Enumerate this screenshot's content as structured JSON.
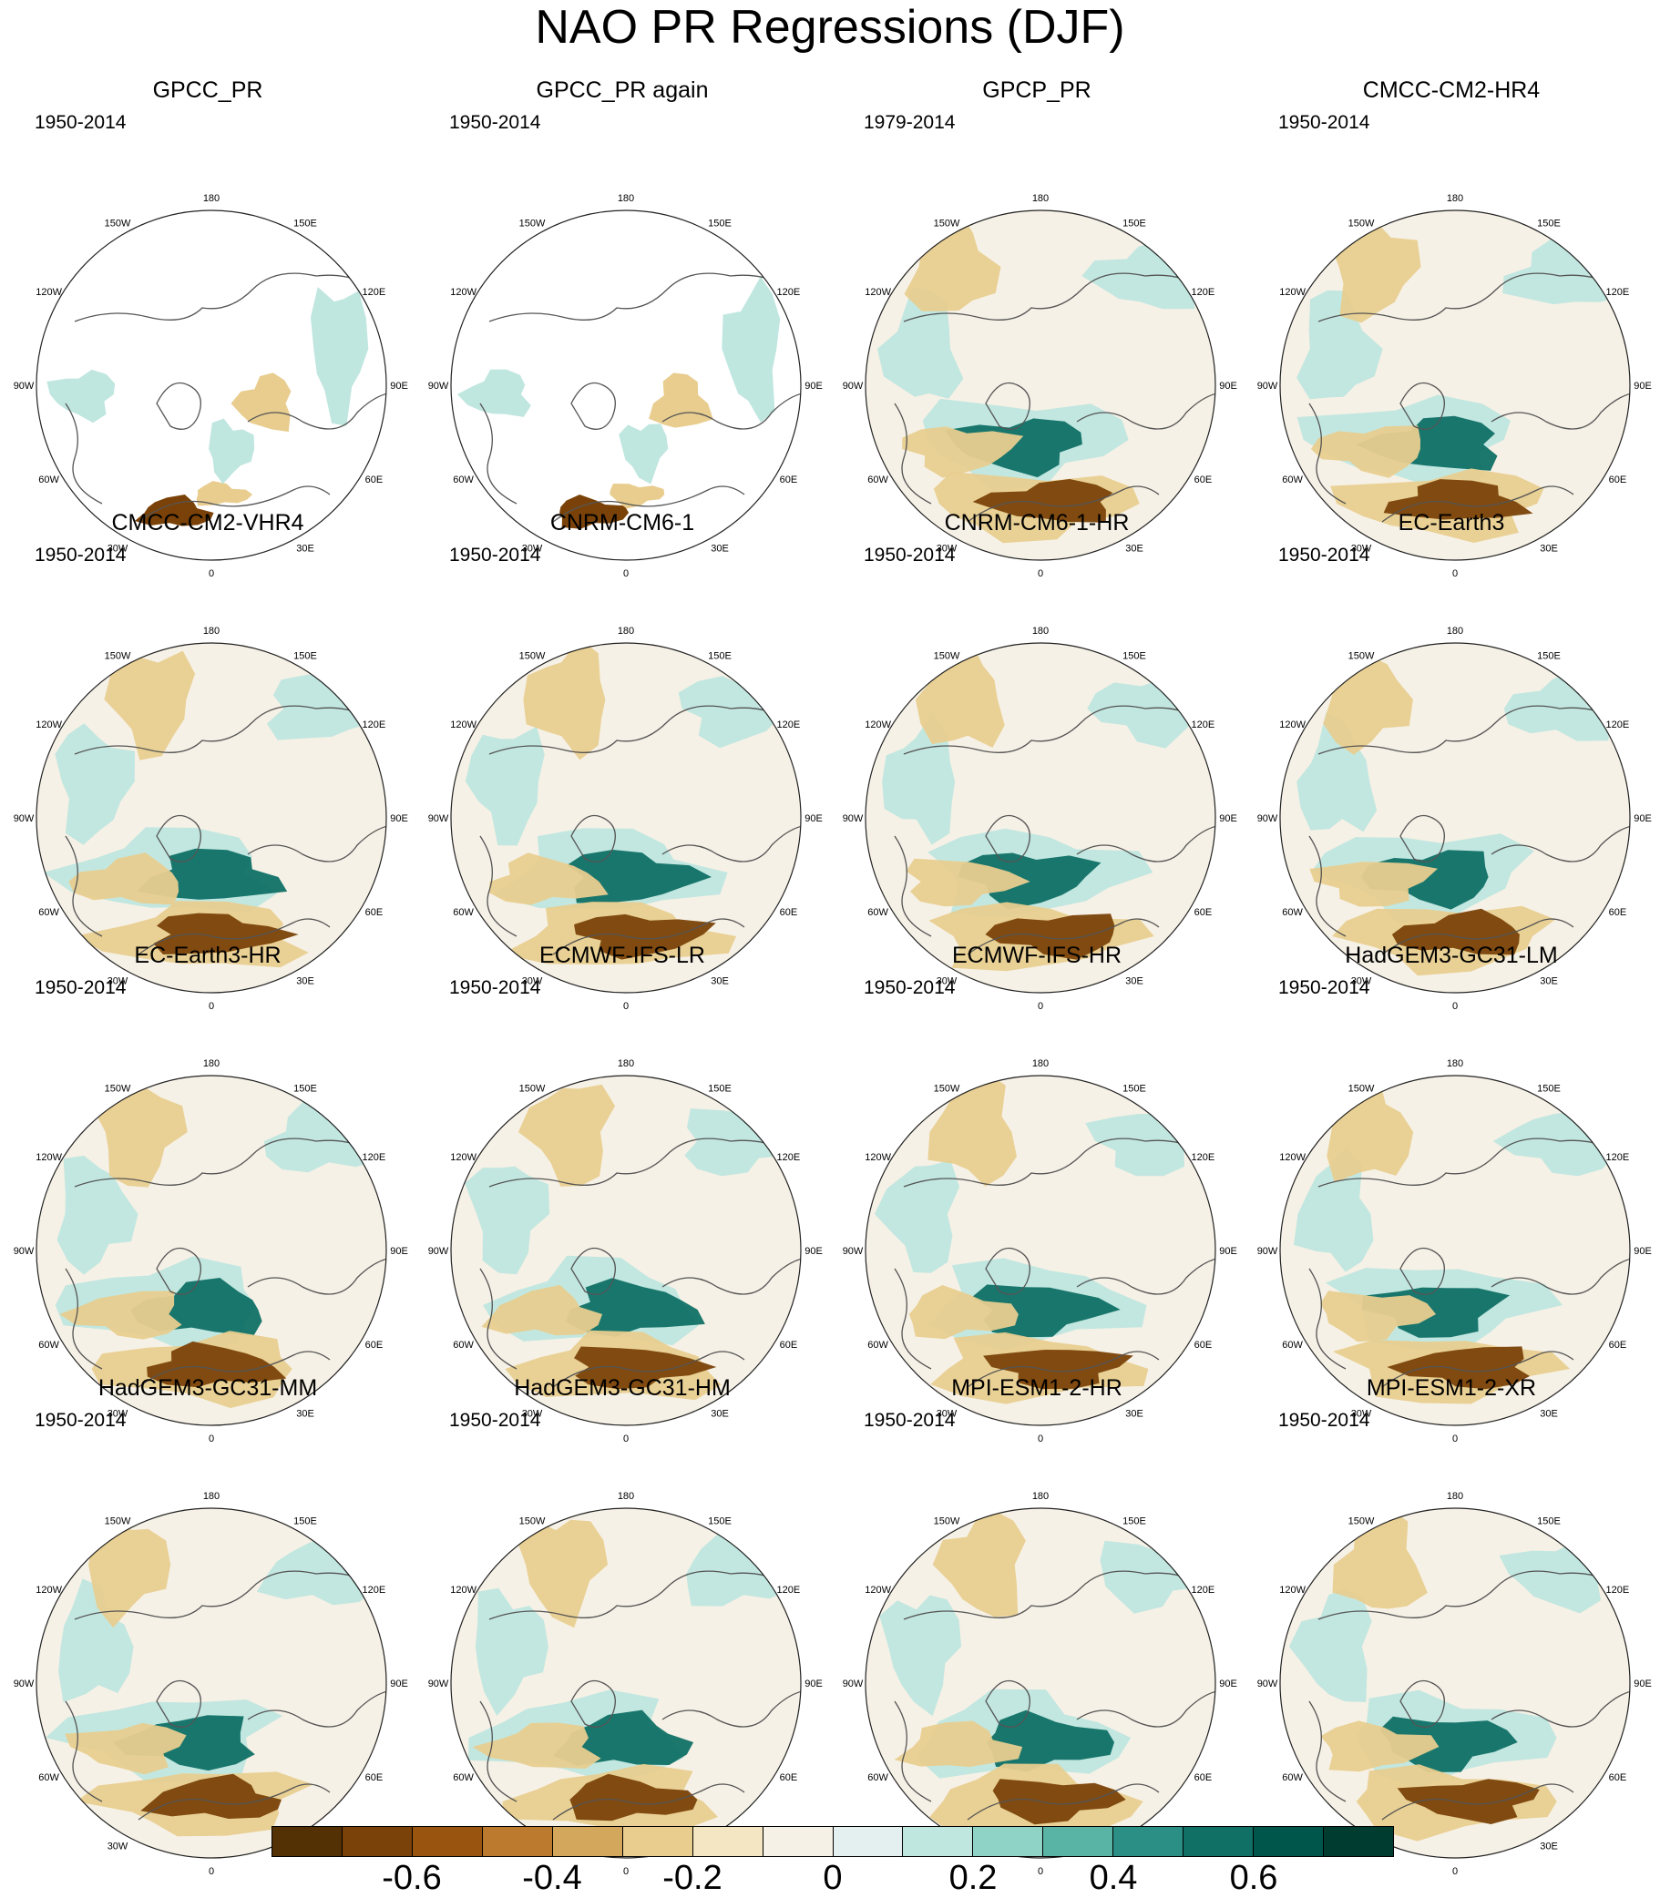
{
  "title": "NAO PR Regressions (DJF)",
  "longitude_labels": [
    "180",
    "150E",
    "120E",
    "90E",
    "60E",
    "30E",
    "0",
    "30W",
    "60W",
    "90W",
    "120W",
    "150W"
  ],
  "panels": [
    {
      "title": "GPCC_PR",
      "years": "1950-2014",
      "missing_over_ocean": true
    },
    {
      "title": "GPCC_PR again",
      "years": "1950-2014",
      "missing_over_ocean": true
    },
    {
      "title": "GPCP_PR",
      "years": "1979-2014",
      "missing_over_ocean": false
    },
    {
      "title": "CMCC-CM2-HR4",
      "years": "1950-2014",
      "missing_over_ocean": false
    },
    {
      "title": "CMCC-CM2-VHR4",
      "years": "1950-2014",
      "missing_over_ocean": false
    },
    {
      "title": "CNRM-CM6-1",
      "years": "1950-2014",
      "missing_over_ocean": false
    },
    {
      "title": "CNRM-CM6-1-HR",
      "years": "1950-2014",
      "missing_over_ocean": false
    },
    {
      "title": "EC-Earth3",
      "years": "1950-2014",
      "missing_over_ocean": false
    },
    {
      "title": "EC-Earth3-HR",
      "years": "1950-2014",
      "missing_over_ocean": false
    },
    {
      "title": "ECMWF-IFS-LR",
      "years": "1950-2014",
      "missing_over_ocean": false
    },
    {
      "title": "ECMWF-IFS-HR",
      "years": "1950-2014",
      "missing_over_ocean": false
    },
    {
      "title": "HadGEM3-GC31-LM",
      "years": "1950-2014",
      "missing_over_ocean": false
    },
    {
      "title": "HadGEM3-GC31-MM",
      "years": "1950-2014",
      "missing_over_ocean": false
    },
    {
      "title": "HadGEM3-GC31-HM",
      "years": "1950-2014",
      "missing_over_ocean": false
    },
    {
      "title": "MPI-ESM1-2-HR",
      "years": "1950-2014",
      "missing_over_ocean": false
    },
    {
      "title": "MPI-ESM1-2-XR",
      "years": "1950-2014",
      "missing_over_ocean": false
    }
  ],
  "colorbar": {
    "colors": [
      "#543005",
      "#7a4208",
      "#995510",
      "#bb7a2e",
      "#d3a75c",
      "#e8cd8f",
      "#f5e6c3",
      "#f6f1e6",
      "#e3f0ef",
      "#bfe6df",
      "#8ed3c5",
      "#5ab4a6",
      "#2c8f85",
      "#107066",
      "#01564b",
      "#003c30"
    ],
    "tick_labels": [
      "-0.6",
      "-0.4",
      "-0.2",
      "0",
      "0.2",
      "0.4",
      "0.6"
    ]
  },
  "colors": {
    "negative_strong": "#7a4208",
    "negative_weak": "#e8cd8f",
    "neutral": "#f6f1e6",
    "positive_weak": "#bfe6df",
    "positive_strong": "#107066",
    "coastline": "#555555",
    "missing": "#ffffff"
  }
}
